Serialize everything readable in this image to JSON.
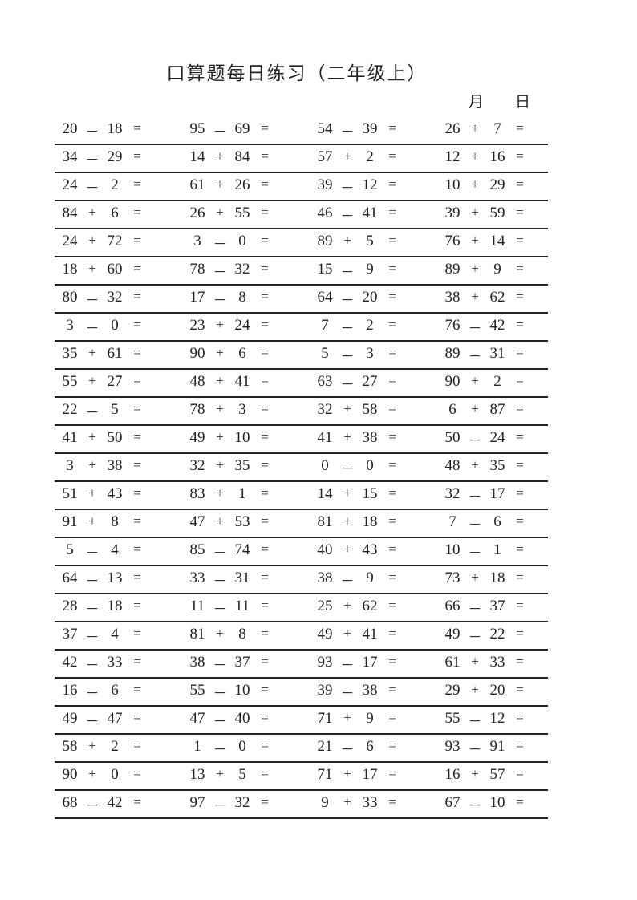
{
  "header": {
    "title": "口算题每日练习（二年级上）",
    "month_label": "月",
    "day_label": "日"
  },
  "equals": "=",
  "problems": [
    [
      [
        "20",
        "-",
        "18"
      ],
      [
        "95",
        "-",
        "69"
      ],
      [
        "54",
        "-",
        "39"
      ],
      [
        "26",
        "+",
        "7"
      ]
    ],
    [
      [
        "34",
        "-",
        "29"
      ],
      [
        "14",
        "+",
        "84"
      ],
      [
        "57",
        "+",
        "2"
      ],
      [
        "12",
        "+",
        "16"
      ]
    ],
    [
      [
        "24",
        "-",
        "2"
      ],
      [
        "61",
        "+",
        "26"
      ],
      [
        "39",
        "-",
        "12"
      ],
      [
        "10",
        "+",
        "29"
      ]
    ],
    [
      [
        "84",
        "+",
        "6"
      ],
      [
        "26",
        "+",
        "55"
      ],
      [
        "46",
        "-",
        "41"
      ],
      [
        "39",
        "+",
        "59"
      ]
    ],
    [
      [
        "24",
        "+",
        "72"
      ],
      [
        "3",
        "-",
        "0"
      ],
      [
        "89",
        "+",
        "5"
      ],
      [
        "76",
        "+",
        "14"
      ]
    ],
    [
      [
        "18",
        "+",
        "60"
      ],
      [
        "78",
        "-",
        "32"
      ],
      [
        "15",
        "-",
        "9"
      ],
      [
        "89",
        "+",
        "9"
      ]
    ],
    [
      [
        "80",
        "-",
        "32"
      ],
      [
        "17",
        "-",
        "8"
      ],
      [
        "64",
        "-",
        "20"
      ],
      [
        "38",
        "+",
        "62"
      ]
    ],
    [
      [
        "3",
        "-",
        "0"
      ],
      [
        "23",
        "+",
        "24"
      ],
      [
        "7",
        "-",
        "2"
      ],
      [
        "76",
        "-",
        "42"
      ]
    ],
    [
      [
        "35",
        "+",
        "61"
      ],
      [
        "90",
        "+",
        "6"
      ],
      [
        "5",
        "-",
        "3"
      ],
      [
        "89",
        "-",
        "31"
      ]
    ],
    [
      [
        "55",
        "+",
        "27"
      ],
      [
        "48",
        "+",
        "41"
      ],
      [
        "63",
        "-",
        "27"
      ],
      [
        "90",
        "+",
        "2"
      ]
    ],
    [
      [
        "22",
        "-",
        "5"
      ],
      [
        "78",
        "+",
        "3"
      ],
      [
        "32",
        "+",
        "58"
      ],
      [
        "6",
        "+",
        "87"
      ]
    ],
    [
      [
        "41",
        "+",
        "50"
      ],
      [
        "49",
        "+",
        "10"
      ],
      [
        "41",
        "+",
        "38"
      ],
      [
        "50",
        "-",
        "24"
      ]
    ],
    [
      [
        "3",
        "+",
        "38"
      ],
      [
        "32",
        "+",
        "35"
      ],
      [
        "0",
        "-",
        "0"
      ],
      [
        "48",
        "+",
        "35"
      ]
    ],
    [
      [
        "51",
        "+",
        "43"
      ],
      [
        "83",
        "+",
        "1"
      ],
      [
        "14",
        "+",
        "15"
      ],
      [
        "32",
        "-",
        "17"
      ]
    ],
    [
      [
        "91",
        "+",
        "8"
      ],
      [
        "47",
        "+",
        "53"
      ],
      [
        "81",
        "+",
        "18"
      ],
      [
        "7",
        "-",
        "6"
      ]
    ],
    [
      [
        "5",
        "-",
        "4"
      ],
      [
        "85",
        "-",
        "74"
      ],
      [
        "40",
        "+",
        "43"
      ],
      [
        "10",
        "-",
        "1"
      ]
    ],
    [
      [
        "64",
        "-",
        "13"
      ],
      [
        "33",
        "-",
        "31"
      ],
      [
        "38",
        "-",
        "9"
      ],
      [
        "73",
        "+",
        "18"
      ]
    ],
    [
      [
        "28",
        "-",
        "18"
      ],
      [
        "11",
        "-",
        "11"
      ],
      [
        "25",
        "+",
        "62"
      ],
      [
        "66",
        "-",
        "37"
      ]
    ],
    [
      [
        "37",
        "-",
        "4"
      ],
      [
        "81",
        "+",
        "8"
      ],
      [
        "49",
        "+",
        "41"
      ],
      [
        "49",
        "-",
        "22"
      ]
    ],
    [
      [
        "42",
        "-",
        "33"
      ],
      [
        "38",
        "-",
        "37"
      ],
      [
        "93",
        "-",
        "17"
      ],
      [
        "61",
        "+",
        "33"
      ]
    ],
    [
      [
        "16",
        "-",
        "6"
      ],
      [
        "55",
        "-",
        "10"
      ],
      [
        "39",
        "-",
        "38"
      ],
      [
        "29",
        "+",
        "20"
      ]
    ],
    [
      [
        "49",
        "-",
        "47"
      ],
      [
        "47",
        "-",
        "40"
      ],
      [
        "71",
        "+",
        "9"
      ],
      [
        "55",
        "-",
        "12"
      ]
    ],
    [
      [
        "58",
        "+",
        "2"
      ],
      [
        "1",
        "-",
        "0"
      ],
      [
        "21",
        "-",
        "6"
      ],
      [
        "93",
        "-",
        "91"
      ]
    ],
    [
      [
        "90",
        "+",
        "0"
      ],
      [
        "13",
        "+",
        "5"
      ],
      [
        "71",
        "+",
        "17"
      ],
      [
        "16",
        "+",
        "57"
      ]
    ],
    [
      [
        "68",
        "-",
        "42"
      ],
      [
        "97",
        "-",
        "32"
      ],
      [
        "9",
        "+",
        "33"
      ],
      [
        "67",
        "-",
        "10"
      ]
    ]
  ]
}
